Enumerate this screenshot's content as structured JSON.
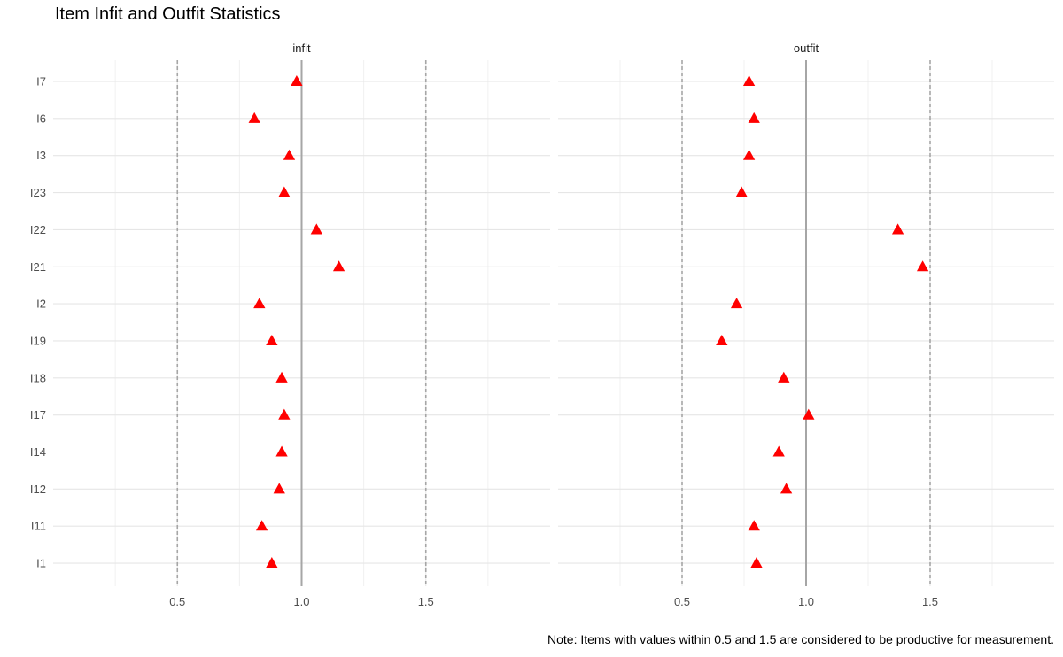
{
  "title": "Item Infit and Outfit Statistics",
  "caption": "Note: Items with values within 0.5 and 1.5 are considered to be productive for measurement.",
  "chart_data": {
    "type": "scatter",
    "marker": "triangle",
    "marker_color": "#ff0000",
    "items": [
      "I7",
      "I6",
      "I3",
      "I23",
      "I22",
      "I21",
      "I2",
      "I19",
      "I18",
      "I17",
      "I14",
      "I12",
      "I11",
      "I1"
    ],
    "xlim": [
      0,
      2
    ],
    "x_ticks": [
      0.5,
      1.0,
      1.5
    ],
    "x_tick_labels": [
      "0.5",
      "1.0",
      "1.5"
    ],
    "reference_lines": [
      {
        "value": 0.5,
        "style": "dashed",
        "color": "#a6a6a6"
      },
      {
        "value": 1.0,
        "style": "solid",
        "color": "#a6a6a6"
      },
      {
        "value": 1.5,
        "style": "dashed",
        "color": "#a6a6a6"
      }
    ],
    "grid": true,
    "facets": [
      {
        "name": "infit",
        "values": [
          0.98,
          0.81,
          0.95,
          0.93,
          1.06,
          1.15,
          0.83,
          0.88,
          0.92,
          0.93,
          0.92,
          0.91,
          0.84,
          0.88
        ]
      },
      {
        "name": "outfit",
        "values": [
          0.77,
          0.79,
          0.77,
          0.74,
          1.37,
          1.47,
          0.72,
          0.66,
          0.91,
          1.01,
          0.89,
          0.92,
          0.79,
          0.8
        ]
      }
    ]
  }
}
